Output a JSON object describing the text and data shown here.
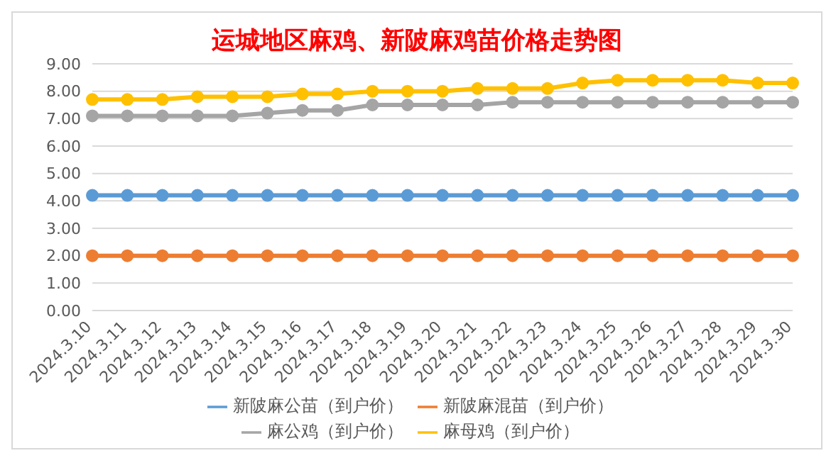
{
  "chart_data": {
    "type": "line",
    "title": "运城地区麻鸡、新陂麻鸡苗价格走势图",
    "categories": [
      "2024.3.10",
      "2024.3.11",
      "2024.3.12",
      "2024.3.13",
      "2024.3.14",
      "2024.3.15",
      "2024.3.16",
      "2024.3.17",
      "2024.3.18",
      "2024.3.19",
      "2024.3.20",
      "2024.3.21",
      "2024.3.22",
      "2024.3.23",
      "2024.3.24",
      "2024.3.25",
      "2024.3.26",
      "2024.3.27",
      "2024.3.28",
      "2024.3.29",
      "2024.3.30"
    ],
    "series": [
      {
        "name": "新陂麻公苗（到户价）",
        "color": "#5b9bd5",
        "values": [
          4.2,
          4.2,
          4.2,
          4.2,
          4.2,
          4.2,
          4.2,
          4.2,
          4.2,
          4.2,
          4.2,
          4.2,
          4.2,
          4.2,
          4.2,
          4.2,
          4.2,
          4.2,
          4.2,
          4.2,
          4.2
        ]
      },
      {
        "name": "新陂麻混苗（到户价）",
        "color": "#ed7d31",
        "values": [
          2.0,
          2.0,
          2.0,
          2.0,
          2.0,
          2.0,
          2.0,
          2.0,
          2.0,
          2.0,
          2.0,
          2.0,
          2.0,
          2.0,
          2.0,
          2.0,
          2.0,
          2.0,
          2.0,
          2.0,
          2.0
        ]
      },
      {
        "name": "麻公鸡（到户价）",
        "color": "#a5a5a5",
        "values": [
          7.1,
          7.1,
          7.1,
          7.1,
          7.1,
          7.2,
          7.3,
          7.3,
          7.5,
          7.5,
          7.5,
          7.5,
          7.6,
          7.6,
          7.6,
          7.6,
          7.6,
          7.6,
          7.6,
          7.6,
          7.6
        ]
      },
      {
        "name": "麻母鸡（到户价）",
        "color": "#ffc000",
        "values": [
          7.7,
          7.7,
          7.7,
          7.8,
          7.8,
          7.8,
          7.9,
          7.9,
          8.0,
          8.0,
          8.0,
          8.1,
          8.1,
          8.1,
          8.3,
          8.4,
          8.4,
          8.4,
          8.4,
          8.3,
          8.3
        ]
      }
    ],
    "ylim": [
      0,
      9
    ],
    "yticks": [
      {
        "value": 0,
        "label": "0.00"
      },
      {
        "value": 1,
        "label": "1.00"
      },
      {
        "value": 2,
        "label": "2.00"
      },
      {
        "value": 3,
        "label": "3.00"
      },
      {
        "value": 4,
        "label": "4.00"
      },
      {
        "value": 5,
        "label": "5.00"
      },
      {
        "value": 6,
        "label": "6.00"
      },
      {
        "value": 7,
        "label": "7.00"
      },
      {
        "value": 8,
        "label": "8.00"
      },
      {
        "value": 9,
        "label": "9.00"
      }
    ],
    "grid": "y",
    "legend": "bottom",
    "marker": "circle",
    "line_style": "solid"
  }
}
